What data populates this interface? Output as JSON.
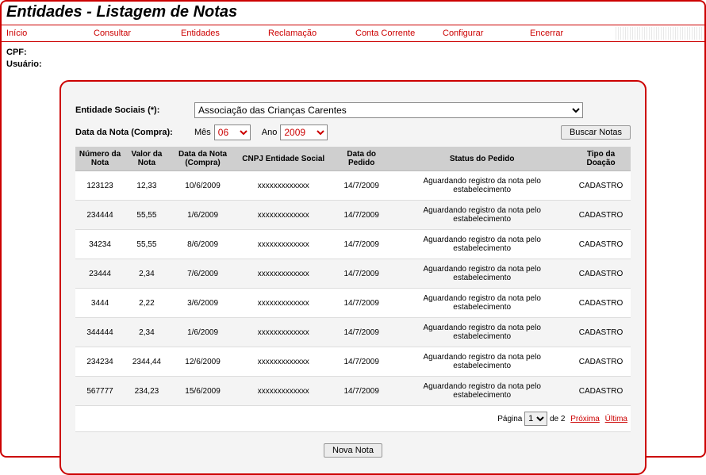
{
  "title": "Entidades - Listagem de Notas",
  "menu": [
    "Início",
    "Consultar",
    "Entidades",
    "Reclamação",
    "Conta Corrente",
    "Configurar",
    "Encerrar"
  ],
  "meta": {
    "cpf_label": "CPF:",
    "usuario_label": "Usuário:"
  },
  "form": {
    "entidade_label": "Entidade Sociais (*):",
    "entidade_value": "Associação das Crianças Carentes",
    "data_label": "Data da Nota (Compra):",
    "mes_label": "Mês",
    "mes_value": "06",
    "ano_label": "Ano",
    "ano_value": "2009",
    "buscar_label": "Buscar Notas"
  },
  "columns": [
    "Número da Nota",
    "Valor da Nota",
    "Data da Nota (Compra)",
    "CNPJ Entidade Social",
    "Data do Pedido",
    "Status do Pedido",
    "Tipo da Doação"
  ],
  "rows": [
    {
      "num": "123123",
      "valor": "12,33",
      "dnota": "10/6/2009",
      "cnpj": "xxxxxxxxxxxxx",
      "dped": "14/7/2009",
      "status": "Aguardando registro da nota pelo estabelecimento",
      "tipo": "CADASTRO"
    },
    {
      "num": "234444",
      "valor": "55,55",
      "dnota": "1/6/2009",
      "cnpj": "xxxxxxxxxxxxx",
      "dped": "14/7/2009",
      "status": "Aguardando registro da nota pelo estabelecimento",
      "tipo": "CADASTRO"
    },
    {
      "num": "34234",
      "valor": "55,55",
      "dnota": "8/6/2009",
      "cnpj": "xxxxxxxxxxxxx",
      "dped": "14/7/2009",
      "status": "Aguardando registro da nota pelo estabelecimento",
      "tipo": "CADASTRO"
    },
    {
      "num": "23444",
      "valor": "2,34",
      "dnota": "7/6/2009",
      "cnpj": "xxxxxxxxxxxxx",
      "dped": "14/7/2009",
      "status": "Aguardando registro da nota pelo estabelecimento",
      "tipo": "CADASTRO"
    },
    {
      "num": "3444",
      "valor": "2,22",
      "dnota": "3/6/2009",
      "cnpj": "xxxxxxxxxxxxx",
      "dped": "14/7/2009",
      "status": "Aguardando registro da nota pelo estabelecimento",
      "tipo": "CADASTRO"
    },
    {
      "num": "344444",
      "valor": "2,34",
      "dnota": "1/6/2009",
      "cnpj": "xxxxxxxxxxxxx",
      "dped": "14/7/2009",
      "status": "Aguardando registro da nota pelo estabelecimento",
      "tipo": "CADASTRO"
    },
    {
      "num": "234234",
      "valor": "2344,44",
      "dnota": "12/6/2009",
      "cnpj": "xxxxxxxxxxxxx",
      "dped": "14/7/2009",
      "status": "Aguardando registro da nota pelo estabelecimento",
      "tipo": "CADASTRO"
    },
    {
      "num": "567777",
      "valor": "234,23",
      "dnota": "15/6/2009",
      "cnpj": "xxxxxxxxxxxxx",
      "dped": "14/7/2009",
      "status": "Aguardando registro da nota pelo estabelecimento",
      "tipo": "CADASTRO"
    }
  ],
  "pager": {
    "pagina_label": "Página",
    "page_value": "1",
    "of_label": "de 2",
    "proxima": "Próxima",
    "ultima": "Última"
  },
  "nova_label": "Nova Nota",
  "colors": {
    "accent": "#cc0000",
    "panel_bg": "#f4f4f4",
    "th_bg": "#cfcfcf"
  }
}
